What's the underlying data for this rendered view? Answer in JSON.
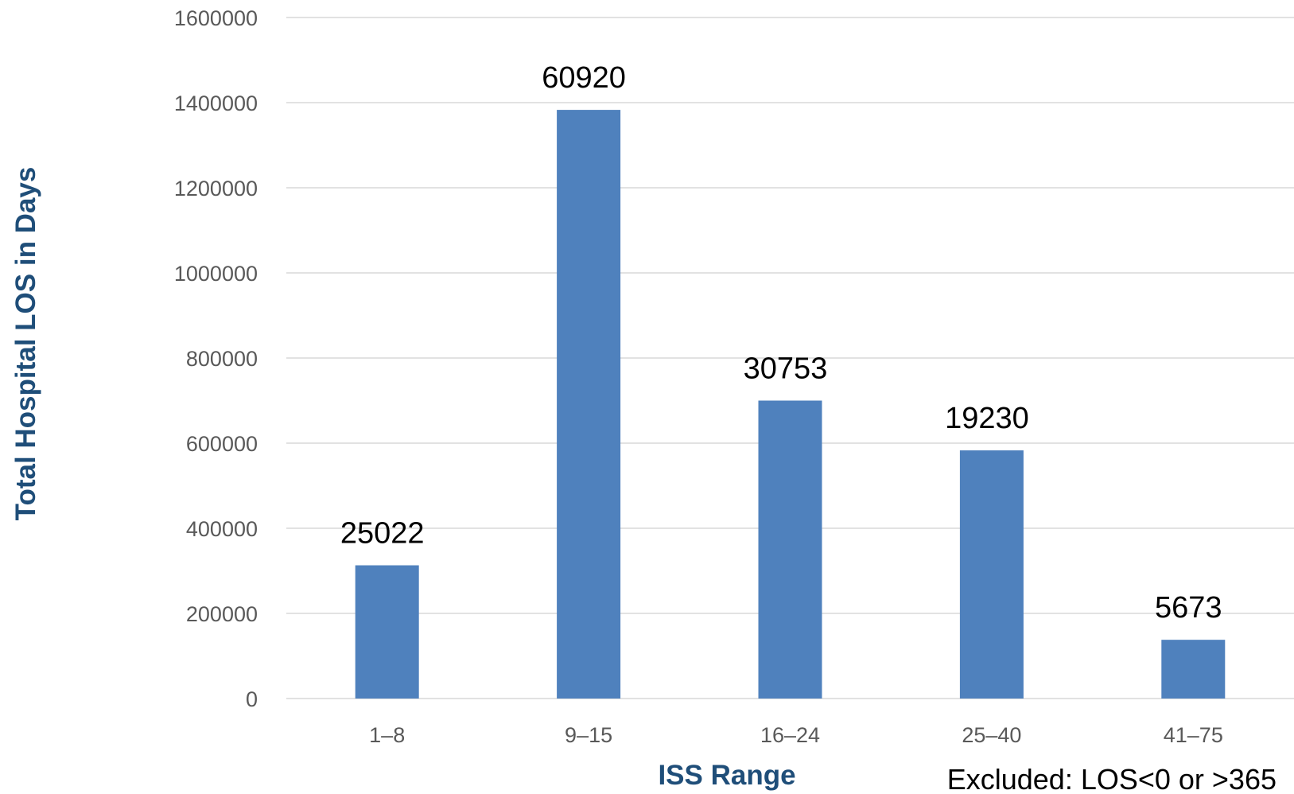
{
  "chart_data": {
    "type": "bar",
    "categories": [
      "1–8",
      "9–15",
      "16–24",
      "25–40",
      "41–75"
    ],
    "values": [
      313000,
      1383000,
      700000,
      583000,
      138000
    ],
    "data_labels": [
      "25022",
      "60920",
      "30753",
      "19230",
      "5673"
    ],
    "ylim": [
      0,
      1600000
    ],
    "yticks": [
      0,
      200000,
      400000,
      600000,
      800000,
      1000000,
      1200000,
      1400000,
      1600000
    ],
    "xlabel": "ISS Range",
    "ylabel": "Total Hospital LOS in Days",
    "title": "",
    "note": "Excluded: LOS<0 or >365",
    "grid": true,
    "legend": "none",
    "colors": {
      "bar": "#4f81bd",
      "axis_title": "#1f4e79"
    }
  }
}
